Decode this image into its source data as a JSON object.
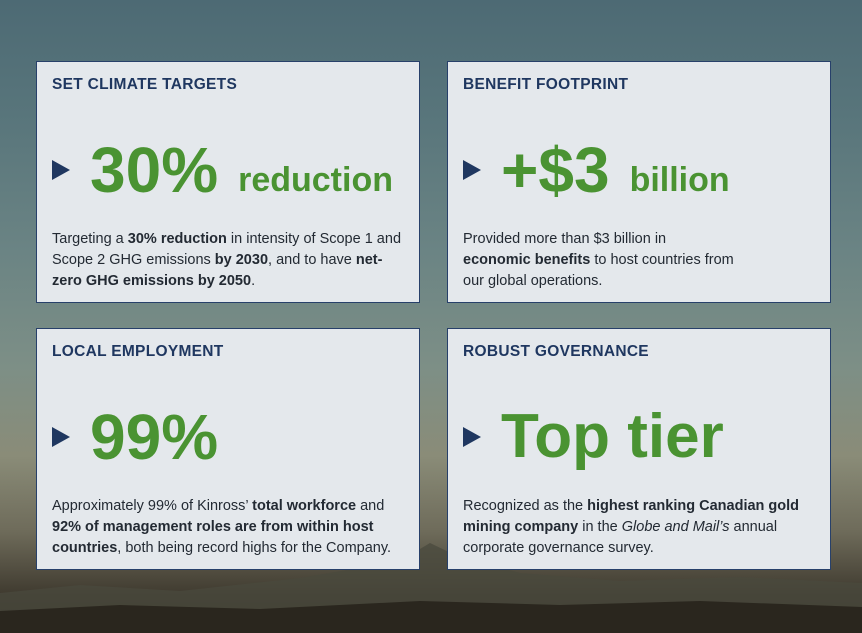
{
  "colors": {
    "accent_green": "#4a9332",
    "navy": "#1f3760",
    "card_bg": "#e4e8ec"
  },
  "cards": [
    {
      "title": "SET CLIMATE TARGETS",
      "metric": "30%",
      "unit": "reduction",
      "desc": [
        "Targeting a ",
        "30% reduction",
        " in intensity of Scope 1 and Scope 2 GHG emissions ",
        "by 2030",
        ", and to have ",
        "net-zero GHG emissions by 2050",
        "."
      ]
    },
    {
      "title": "BENEFIT FOOTPRINT",
      "metric": "+$3",
      "unit": "billion",
      "desc": [
        "Provided more than $3 billion in ",
        "economic benefits",
        " to host countries from our global operations."
      ]
    },
    {
      "title": "LOCAL EMPLOYMENT",
      "metric": "99%",
      "desc": [
        "Approximately 99% of Kinross’ ",
        "total workforce",
        " and ",
        "92% of management roles are from within host countries",
        ", both being record highs for the Company."
      ]
    },
    {
      "title": "ROBUST GOVERNANCE",
      "metric": "Top tier",
      "desc": [
        "Recognized as the ",
        "highest ranking Canadian gold mining company",
        " in the ",
        "Globe and Mail’s",
        " annual corporate governance survey."
      ]
    }
  ]
}
